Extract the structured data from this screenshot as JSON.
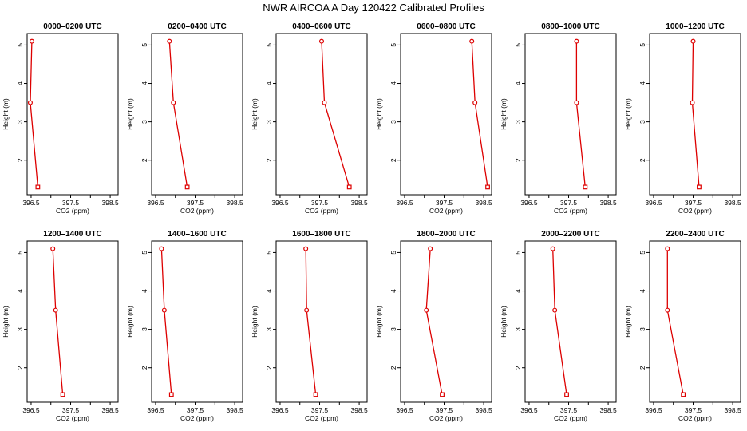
{
  "title": "NWR AIRCOA A  Day 120422  Calibrated Profiles",
  "colors": {
    "series": "#dd0000",
    "axis": "#000000"
  },
  "chart_data": {
    "type": "line",
    "xlabel": "CO2 (ppm)",
    "ylabel": "Height (m)",
    "xlim": [
      396.4,
      398.7
    ],
    "ylim": [
      1.1,
      5.3
    ],
    "xticks": [
      "396.5",
      "397.5",
      "398.5"
    ],
    "yticks": [
      "2",
      "3",
      "4",
      "5"
    ],
    "grid": false,
    "panels": [
      {
        "title": "0000–0200 UTC",
        "x": [
          396.52,
          396.48,
          396.67
        ],
        "y": [
          5.1,
          3.5,
          1.3
        ]
      },
      {
        "title": "0200–0400 UTC",
        "x": [
          396.85,
          396.95,
          397.3
        ],
        "y": [
          5.1,
          3.5,
          1.3
        ]
      },
      {
        "title": "0400–0600 UTC",
        "x": [
          397.55,
          397.62,
          398.25
        ],
        "y": [
          5.1,
          3.5,
          1.3
        ]
      },
      {
        "title": "0600–0800 UTC",
        "x": [
          398.2,
          398.28,
          398.6
        ],
        "y": [
          5.1,
          3.5,
          1.3
        ]
      },
      {
        "title": "0800–1000 UTC",
        "x": [
          397.7,
          397.7,
          397.92
        ],
        "y": [
          5.1,
          3.5,
          1.3
        ]
      },
      {
        "title": "1000–1200 UTC",
        "x": [
          397.5,
          397.48,
          397.65
        ],
        "y": [
          5.1,
          3.5,
          1.3
        ]
      },
      {
        "title": "1200–1400 UTC",
        "x": [
          397.05,
          397.12,
          397.3
        ],
        "y": [
          5.1,
          3.5,
          1.3
        ]
      },
      {
        "title": "1400–1600 UTC",
        "x": [
          396.65,
          396.72,
          396.9
        ],
        "y": [
          5.1,
          3.5,
          1.3
        ]
      },
      {
        "title": "1600–1800 UTC",
        "x": [
          397.15,
          397.17,
          397.4
        ],
        "y": [
          5.1,
          3.5,
          1.3
        ]
      },
      {
        "title": "1800–2000 UTC",
        "x": [
          397.15,
          397.05,
          397.45
        ],
        "y": [
          5.1,
          3.5,
          1.3
        ]
      },
      {
        "title": "2000–2200 UTC",
        "x": [
          397.1,
          397.15,
          397.45
        ],
        "y": [
          5.1,
          3.5,
          1.3
        ]
      },
      {
        "title": "2200–2400 UTC",
        "x": [
          396.85,
          396.85,
          397.25
        ],
        "y": [
          5.1,
          3.5,
          1.3
        ]
      }
    ]
  }
}
